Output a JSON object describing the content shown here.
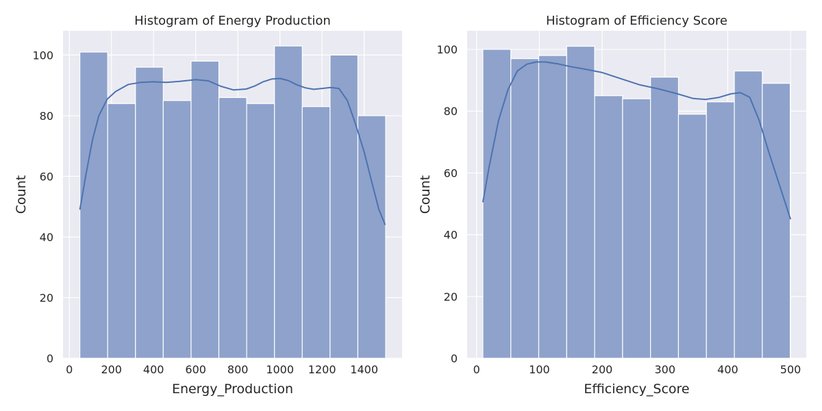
{
  "chart_data": [
    {
      "type": "bar",
      "title": "Histogram of Energy Production",
      "xlabel": "Energy_Production",
      "ylabel": "Count",
      "bin_edges": [
        50,
        182,
        314,
        446,
        578,
        710,
        842,
        974,
        1106,
        1238,
        1370,
        1502
      ],
      "values": [
        101,
        84,
        96,
        85,
        98,
        86,
        84,
        103,
        83,
        100,
        80
      ],
      "kde": {
        "x": [
          50,
          80,
          110,
          140,
          180,
          220,
          280,
          340,
          400,
          460,
          520,
          560,
          600,
          660,
          720,
          780,
          840,
          880,
          920,
          960,
          1000,
          1040,
          1080,
          1120,
          1160,
          1200,
          1240,
          1280,
          1320,
          1360,
          1400,
          1440,
          1470,
          1500
        ],
        "y": [
          49,
          61,
          72,
          80,
          85.5,
          88,
          90.3,
          91,
          91.2,
          91,
          91.3,
          91.6,
          91.9,
          91.5,
          89.7,
          88.5,
          88.8,
          89.8,
          91.2,
          92.1,
          92.3,
          91.6,
          90.2,
          89.2,
          88.7,
          89.0,
          89.3,
          89.0,
          85.0,
          77.0,
          68.0,
          57.0,
          49.0,
          44.0
        ]
      },
      "xlim": [
        -30,
        1580
      ],
      "ylim": [
        0,
        108
      ],
      "xticks": [
        0,
        200,
        400,
        600,
        800,
        1000,
        1200,
        1400
      ],
      "yticks": [
        0,
        20,
        40,
        60,
        80,
        100
      ],
      "grid": true,
      "bar_color": "#8ea2cb",
      "line_color": "#4c72b0",
      "background": "#eaeaf2"
    },
    {
      "type": "bar",
      "title": "Histogram of Efficiency Score",
      "xlabel": "Efficiency_Score",
      "ylabel": "Count",
      "bin_edges": [
        10,
        54.5,
        99,
        143.5,
        188,
        232.5,
        277,
        321.5,
        366,
        410.5,
        455,
        499.5
      ],
      "values": [
        100,
        97,
        98,
        101,
        85,
        84,
        91,
        79,
        83,
        93,
        89
      ],
      "kde": {
        "x": [
          10,
          20,
          35,
          50,
          65,
          80,
          95,
          110,
          130,
          150,
          175,
          200,
          230,
          260,
          290,
          320,
          345,
          365,
          385,
          405,
          420,
          435,
          450,
          465,
          480,
          500
        ],
        "y": [
          50.5,
          62,
          77,
          87,
          93,
          95.2,
          95.9,
          95.9,
          95.3,
          94.4,
          93.5,
          92.5,
          90.5,
          88.5,
          87.2,
          85.6,
          84.1,
          83.8,
          84.4,
          85.6,
          86.0,
          84.5,
          77.0,
          67.0,
          57.5,
          45.0
        ]
      },
      "xlim": [
        -15,
        525
      ],
      "ylim": [
        0,
        106
      ],
      "xticks": [
        0,
        100,
        200,
        300,
        400,
        500
      ],
      "yticks": [
        0,
        20,
        40,
        60,
        80,
        100
      ],
      "grid": true,
      "bar_color": "#8ea2cb",
      "line_color": "#4c72b0",
      "background": "#eaeaf2"
    }
  ]
}
